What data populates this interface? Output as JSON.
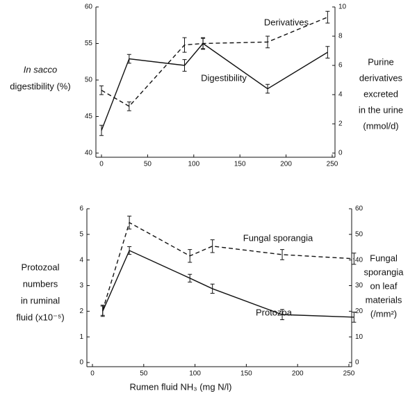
{
  "chart_data": [
    {
      "type": "line",
      "ylabel": [
        "In sacco",
        "digestibility (%)"
      ],
      "y2label": [
        "Purine",
        "derivatives",
        "excreted",
        "in the urine",
        "(mmol/d)"
      ],
      "xlim": [
        0,
        250
      ],
      "xticks": [
        0,
        50,
        100,
        150,
        200,
        250
      ],
      "ylim": [
        40,
        60
      ],
      "yticks": [
        40,
        45,
        50,
        55,
        60
      ],
      "y2lim": [
        0,
        10
      ],
      "y2ticks": [
        0,
        2,
        4,
        6,
        8,
        10
      ],
      "x": [
        0,
        30,
        90,
        110,
        180,
        245
      ],
      "series": [
        {
          "name": "Digestibility",
          "color": "#111111",
          "linestyle": "solid",
          "axis": "y",
          "values": [
            43.1,
            52.9,
            52.0,
            55.0,
            48.8,
            53.8
          ],
          "errors": [
            0.7,
            0.6,
            0.8,
            0.7,
            0.6,
            0.8
          ]
        },
        {
          "name": "Derivatives",
          "color": "#111111",
          "linestyle": "dashed",
          "axis": "y2",
          "values": [
            4.3,
            3.2,
            7.4,
            7.5,
            7.6,
            9.3
          ],
          "errors": [
            0.3,
            0.3,
            0.5,
            0.4,
            0.4,
            0.4
          ]
        }
      ]
    },
    {
      "type": "line",
      "xlabel": "Rumen fluid NH₃ (mg N/l)",
      "ylabel": [
        "Protozoal",
        "numbers",
        "in ruminal",
        "fluid (x10⁻⁵)"
      ],
      "y2label": [
        "Fungal",
        "sporangia",
        "on leaf",
        "materials",
        "(/mm²)"
      ],
      "xlim": [
        0,
        250
      ],
      "xticks": [
        0,
        50,
        100,
        150,
        200,
        250
      ],
      "ylim": [
        0,
        6
      ],
      "yticks": [
        0,
        1,
        2,
        3,
        4,
        5,
        6
      ],
      "y2lim": [
        0,
        60
      ],
      "y2ticks": [
        0,
        10,
        20,
        30,
        40,
        50,
        60
      ],
      "x": [
        10,
        36,
        95,
        117,
        185,
        255
      ],
      "series": [
        {
          "name": "Protozoa",
          "color": "#111111",
          "linestyle": "solid",
          "axis": "y",
          "values": [
            2.0,
            4.37,
            3.29,
            2.88,
            1.87,
            1.77
          ],
          "errors": [
            0.2,
            0.15,
            0.15,
            0.18,
            0.2,
            0.2
          ]
        },
        {
          "name": "Fungal sporangia",
          "color": "#111111",
          "linestyle": "dashed",
          "axis": "y2",
          "values": [
            20.4,
            54.6,
            41.6,
            45.4,
            42.1,
            40.5
          ],
          "errors": [
            2.0,
            2.5,
            2.5,
            2.5,
            2.0,
            2.2
          ]
        }
      ]
    }
  ]
}
